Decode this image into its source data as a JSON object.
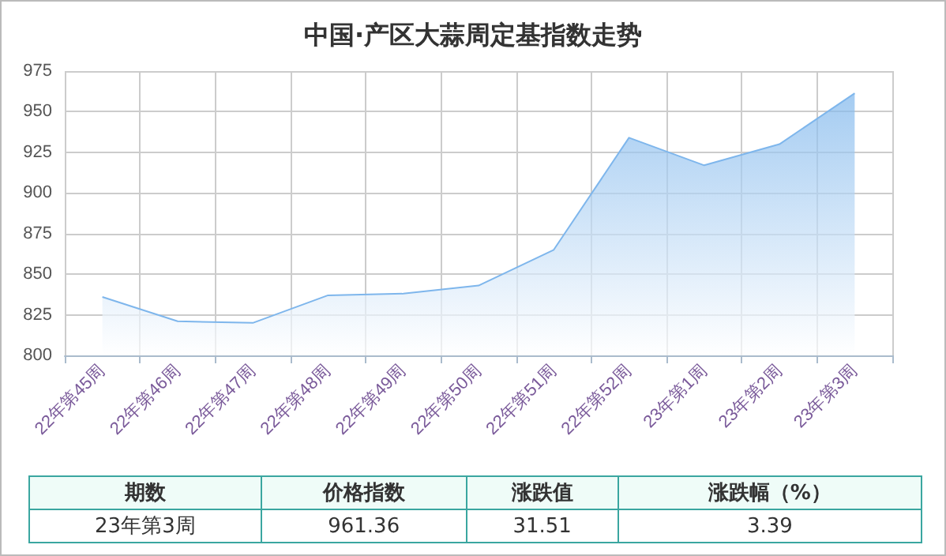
{
  "chart_data": {
    "type": "area",
    "title": "中国·产区大蒜周定基指数走势",
    "categories": [
      "22年第45周",
      "22年第46周",
      "22年第47周",
      "22年第48周",
      "22年第49周",
      "22年第50周",
      "22年第51周",
      "22年第52周",
      "23年第1周",
      "23年第2周",
      "23年第3周"
    ],
    "series": [
      {
        "color": "#7eb6ec",
        "values": [
          836,
          821,
          820,
          837,
          838,
          843,
          865,
          934,
          917,
          930,
          961.36
        ]
      }
    ],
    "ylim": [
      800,
      975
    ],
    "yticks": [
      800,
      825,
      850,
      875,
      900,
      925,
      950,
      975
    ],
    "grid": true,
    "marker": "none",
    "annotations": [
      "期数",
      "价格指数",
      "涨跌值",
      "涨跌幅（%）",
      "23年第3周",
      "961.36",
      "31.51",
      "3.39"
    ]
  }
}
